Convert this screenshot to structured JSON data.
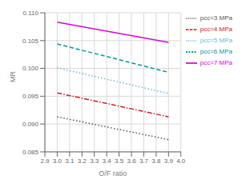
{
  "chart_data": {
    "type": "line",
    "xlabel": "O/F ratio",
    "ylabel": "MR",
    "x": [
      3.0,
      3.9
    ],
    "xlim": [
      2.9,
      4.0
    ],
    "xticks": [
      2.9,
      {
        "value": 3.0,
        "label": "3.0"
      },
      3.1,
      3.2,
      3.3,
      3.4,
      3.5,
      3.6,
      3.7,
      3.8,
      3.9,
      {
        "value": 4.0,
        "label": "4.0"
      }
    ],
    "ylim": [
      0.085,
      0.11
    ],
    "yticks": [
      0.085,
      {
        "value": 0.09,
        "label": "0.090"
      },
      0.095,
      {
        "value": 0.1,
        "label": "0.100"
      },
      0.105,
      {
        "value": 0.11,
        "label": "0.110"
      }
    ],
    "series": [
      {
        "name": "pcc=3 MPa",
        "color": "#555555",
        "line_style": "dotted",
        "values": [
          0.0913,
          0.0872
        ]
      },
      {
        "name": "pcc=4 MPa",
        "color": "#cc2222",
        "line_style": "dashdot",
        "values": [
          0.0956,
          0.0913
        ]
      },
      {
        "name": "pcc=5 MPa",
        "color": "#66bbdd",
        "line_style": "dotted",
        "values": [
          0.1001,
          0.0955
        ]
      },
      {
        "name": "pcc=6 MPa",
        "color": "#009999",
        "line_style": "dashed",
        "values": [
          0.1044,
          0.0993
        ]
      },
      {
        "name": "pcc=7 MPa",
        "color": "#dd00dd",
        "line_style": "solid",
        "values": [
          0.1083,
          0.1047
        ]
      }
    ],
    "grid": true,
    "legend": "upper right"
  }
}
